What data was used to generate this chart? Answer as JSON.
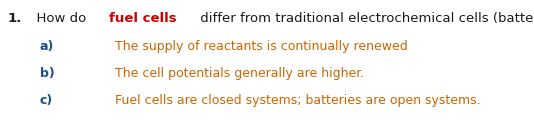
{
  "background_color": "#ffffff",
  "figsize": [
    5.34,
    1.22
  ],
  "dpi": 100,
  "q_color": "#1a1a1a",
  "q_highlight_color": "#cc0000",
  "q_font_size": 9.5,
  "option_label_color": "#1a4f8a",
  "option_text_color": "#cc6600",
  "option_font_size": 9.0,
  "options": [
    {
      "label": "a)",
      "text": "The supply of reactants is continually renewed"
    },
    {
      "label": "b)",
      "text": "The cell potentials generally are higher."
    },
    {
      "label": "c)",
      "text": "Fuel cells are closed systems; batteries are open systems."
    }
  ]
}
